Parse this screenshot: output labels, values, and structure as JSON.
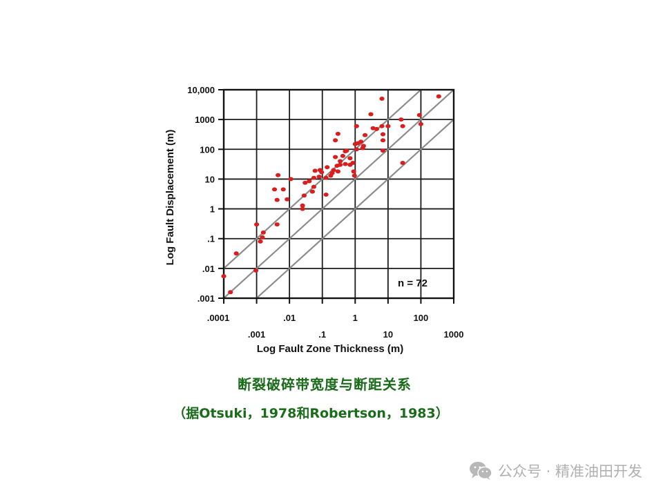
{
  "chart_data": {
    "type": "scatter",
    "xlabel": "Log Fault Zone Thickness (m)",
    "ylabel": "Log Fault Displacement (m)",
    "x_scale": "log",
    "y_scale": "log",
    "xlim": [
      0.0001,
      1000
    ],
    "ylim": [
      0.001,
      10000
    ],
    "x_ticks": [
      0.0001,
      0.001,
      0.01,
      0.1,
      1,
      10,
      100,
      1000
    ],
    "x_tick_labels": [
      ".0001",
      ".001",
      ".01",
      ".1",
      "1",
      "10",
      "100",
      "1000"
    ],
    "y_ticks": [
      0.001,
      0.01,
      0.1,
      1,
      10,
      100,
      1000,
      10000
    ],
    "y_tick_labels": [
      ".001",
      ".01",
      ".1",
      "1",
      "10",
      "100",
      "1000",
      "10,000"
    ],
    "grid": true,
    "reference_lines": [
      {
        "displacement_over_thickness": 1
      },
      {
        "displacement_over_thickness": 10
      },
      {
        "displacement_over_thickness": 100
      }
    ],
    "annotation": "n = 72",
    "point_color": "#d91e1e",
    "series": [
      {
        "points": [
          [
            0.0001,
            0.0055
          ],
          [
            0.00016,
            0.0016
          ],
          [
            0.00024,
            0.032
          ],
          [
            0.00095,
            0.0085
          ],
          [
            0.001,
            0.3
          ],
          [
            0.0013,
            0.08
          ],
          [
            0.0015,
            0.11
          ],
          [
            0.0016,
            0.16
          ],
          [
            0.0042,
            0.3
          ],
          [
            0.0042,
            2
          ],
          [
            0.0035,
            4.5
          ],
          [
            0.0045,
            13.5
          ],
          [
            0.0065,
            4.5
          ],
          [
            0.0085,
            2.1
          ],
          [
            0.011,
            10
          ],
          [
            0.025,
            1
          ],
          [
            0.025,
            1.3
          ],
          [
            0.028,
            2.8
          ],
          [
            0.03,
            7.5
          ],
          [
            0.04,
            8.5
          ],
          [
            0.05,
            3.8
          ],
          [
            0.055,
            5.5
          ],
          [
            0.055,
            11
          ],
          [
            0.06,
            19
          ],
          [
            0.08,
            12
          ],
          [
            0.085,
            20
          ],
          [
            0.095,
            17
          ],
          [
            0.13,
            11
          ],
          [
            0.13,
            3
          ],
          [
            0.14,
            25
          ],
          [
            0.18,
            13
          ],
          [
            0.2,
            16
          ],
          [
            0.22,
            20
          ],
          [
            0.25,
            55
          ],
          [
            0.25,
            200
          ],
          [
            0.28,
            28
          ],
          [
            0.3,
            330
          ],
          [
            0.3,
            18
          ],
          [
            0.35,
            30
          ],
          [
            0.35,
            40
          ],
          [
            0.42,
            60
          ],
          [
            0.5,
            85
          ],
          [
            0.5,
            32
          ],
          [
            0.55,
            90
          ],
          [
            0.7,
            30
          ],
          [
            0.7,
            50
          ],
          [
            0.85,
            35
          ],
          [
            0.9,
            18
          ],
          [
            0.95,
            13
          ],
          [
            1.0,
            150
          ],
          [
            1.1,
            100
          ],
          [
            1.1,
            600
          ],
          [
            1.2,
            160
          ],
          [
            1.5,
            180
          ],
          [
            1.7,
            110
          ],
          [
            1.8,
            130
          ],
          [
            2.0,
            300
          ],
          [
            3.0,
            1500
          ],
          [
            3.5,
            510
          ],
          [
            4.5,
            480
          ],
          [
            6.5,
            5000
          ],
          [
            6.5,
            600
          ],
          [
            7.0,
            90
          ],
          [
            7.0,
            320
          ],
          [
            7.0,
            200
          ],
          [
            10.0,
            600
          ],
          [
            25.0,
            1000
          ],
          [
            28.0,
            600
          ],
          [
            28.0,
            35
          ],
          [
            90.0,
            1400
          ],
          [
            100.0,
            700
          ],
          [
            350.0,
            6000
          ]
        ]
      }
    ]
  },
  "caption": {
    "title": "断裂破碎带宽度与断距关系",
    "source": "（据Otsuki，1978和Robertson，1983）"
  },
  "watermark": {
    "text": "公众号 · 精准油田开发",
    "icon": "wechat-icon"
  }
}
